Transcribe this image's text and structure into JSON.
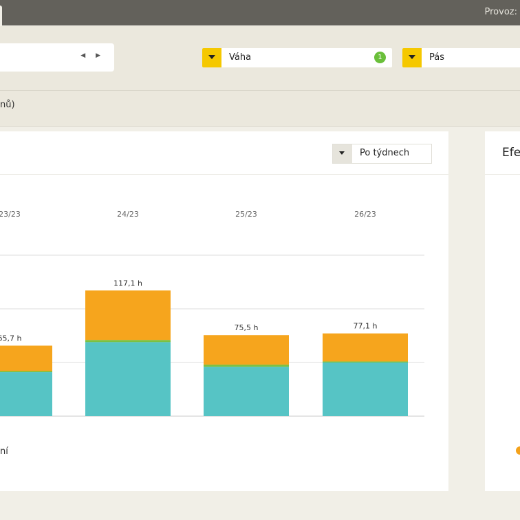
{
  "topbar": {
    "provoz_label": "Provoz:"
  },
  "filters": {
    "date_nav_arrows": "◀ ▶",
    "dropdown_vaha": {
      "label": "Váha",
      "badge": "1"
    },
    "dropdown_pas": {
      "label": "Pás"
    },
    "accent_color": "#f5c800"
  },
  "subbar": {
    "text": "nů)"
  },
  "panel": {
    "grouping_select": "Po týdnech",
    "legend_partial": "ní"
  },
  "side_panel": {
    "title_partial": "Efe"
  },
  "chart_data": {
    "type": "bar",
    "stacked": true,
    "categories": [
      "23/23",
      "24/23",
      "25/23",
      "26/23"
    ],
    "total_labels": [
      "65,7 h",
      "117,1 h",
      "75,5 h",
      "77,1 h"
    ],
    "totals": [
      65.7,
      117.1,
      75.5,
      77.1
    ],
    "series": [
      {
        "color": "#56c4c5",
        "values": [
          41,
          69,
          46,
          50
        ]
      },
      {
        "color": "#7ac143",
        "values": [
          1,
          2,
          2,
          1
        ]
      },
      {
        "color": "#f6a51d",
        "values": [
          23.7,
          46.1,
          27.5,
          26.1
        ]
      }
    ],
    "ylim": [
      0,
      150
    ],
    "grid": true
  }
}
